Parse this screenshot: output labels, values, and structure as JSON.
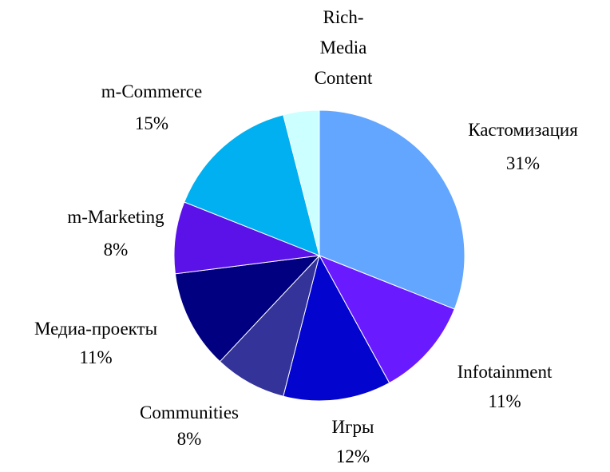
{
  "chart_data": {
    "type": "pie",
    "categories": [
      "Кастомизация",
      "Infotainment",
      "Игры",
      "Communities",
      "Медиа-проекты",
      "m-Marketing",
      "m-Commerce",
      "Rich-Media Content"
    ],
    "values": [
      31,
      11,
      12,
      8,
      11,
      8,
      15,
      4
    ],
    "value_labels": [
      "31%",
      "11%",
      "12%",
      "8%",
      "11%",
      "8%",
      "15%",
      null
    ],
    "colors": [
      "#63a6ff",
      "#6a1aff",
      "#0404cf",
      "#333399",
      "#000080",
      "#5a12e8",
      "#00b0f0",
      "#ccffff"
    ]
  }
}
